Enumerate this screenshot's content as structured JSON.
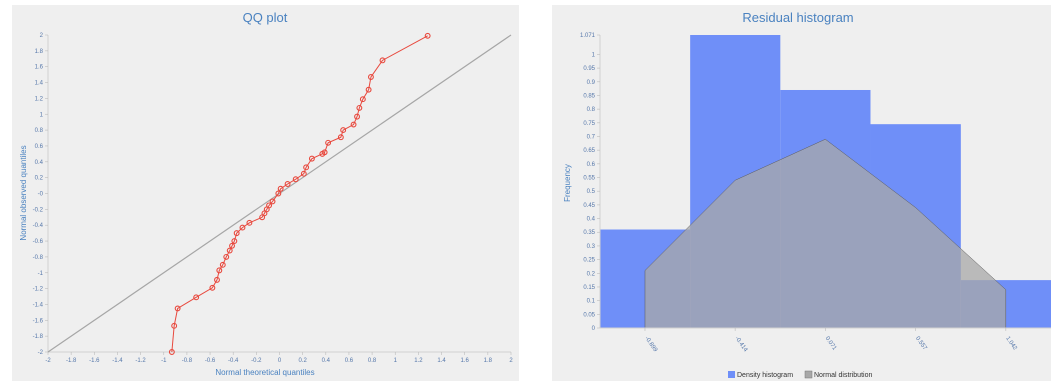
{
  "chart_data": [
    {
      "type": "scatter",
      "title": "QQ plot",
      "xlabel": "Normal theoretical quantiles",
      "ylabel": "Normal observed quantiles",
      "xlim": [
        -2,
        2
      ],
      "ylim": [
        -2,
        2
      ],
      "xticks": [
        "-2",
        "-1.8",
        "-1.6",
        "-1.4",
        "-1.2",
        "-1",
        "-0.8",
        "-0.6",
        "-0.4",
        "-0.2",
        "0",
        "0.2",
        "0.4",
        "0.6",
        "0.8",
        "1",
        "1.2",
        "1.4",
        "1.6",
        "1.8",
        "2"
      ],
      "yticks": [
        "-2",
        "-1.8",
        "-1.6",
        "-1.4",
        "-1.2",
        "-1",
        "-0.8",
        "-0.6",
        "-0.4",
        "-0.2",
        "-0",
        "0.2",
        "0.4",
        "0.6",
        "0.8",
        "1",
        "1.2",
        "1.4",
        "1.6",
        "1.8",
        "2"
      ],
      "grid": false,
      "reference_line": {
        "from": [
          -2,
          -2
        ],
        "to": [
          2,
          2
        ],
        "color": "#a6a6a6"
      },
      "series": [
        {
          "color": "#e8483d",
          "x": [
            -0.93,
            -0.91,
            -0.88,
            -0.72,
            -0.58,
            -0.54,
            -0.52,
            -0.49,
            -0.46,
            -0.43,
            -0.41,
            -0.39,
            -0.37,
            -0.32,
            -0.26,
            -0.15,
            -0.13,
            -0.11,
            -0.09,
            -0.06,
            -0.01,
            0.01,
            0.07,
            0.14,
            0.21,
            0.23,
            0.28,
            0.37,
            0.39,
            0.42,
            0.53,
            0.55,
            0.64,
            0.67,
            0.69,
            0.72,
            0.77,
            0.79,
            0.89,
            1.28
          ],
          "y": [
            -2.0,
            -1.67,
            -1.45,
            -1.31,
            -1.19,
            -1.09,
            -0.97,
            -0.9,
            -0.8,
            -0.72,
            -0.66,
            -0.6,
            -0.5,
            -0.43,
            -0.37,
            -0.3,
            -0.25,
            -0.2,
            -0.15,
            -0.1,
            0.0,
            0.06,
            0.12,
            0.18,
            0.25,
            0.33,
            0.44,
            0.5,
            0.52,
            0.64,
            0.71,
            0.8,
            0.87,
            0.97,
            1.08,
            1.19,
            1.31,
            1.47,
            1.68,
            1.99
          ]
        }
      ]
    },
    {
      "type": "bar",
      "title": "Residual histogram",
      "xlabel": "",
      "ylabel": "Frequency",
      "ylim": [
        0,
        1.071
      ],
      "yticks": [
        "0",
        "0.05",
        "0.1",
        "0.15",
        "0.2",
        "0.25",
        "0.3",
        "0.35",
        "0.4",
        "0.45",
        "0.5",
        "0.55",
        "0.6",
        "0.65",
        "0.7",
        "0.75",
        "0.8",
        "0.85",
        "0.9",
        "0.95",
        "1",
        "1.071"
      ],
      "xticks": [
        "-0.899",
        "-0.414",
        "0.071",
        "0.557",
        "1.042"
      ],
      "xlim": [
        -1.141,
        1.285
      ],
      "bin_edges": [
        -1.141,
        -0.656,
        -0.171,
        0.314,
        0.8,
        1.285
      ],
      "series": [
        {
          "name": "Density histogram",
          "color": "#6f8ff8",
          "values": [
            0.36,
            1.071,
            0.87,
            0.745,
            0.175
          ]
        },
        {
          "name": "Normal distribution",
          "color": "#a8a8a8",
          "x": [
            -0.899,
            -0.414,
            0.071,
            0.557,
            1.042
          ],
          "values": [
            0.21,
            0.54,
            0.69,
            0.44,
            0.14
          ]
        }
      ],
      "legend_position": "bottom-center"
    }
  ]
}
